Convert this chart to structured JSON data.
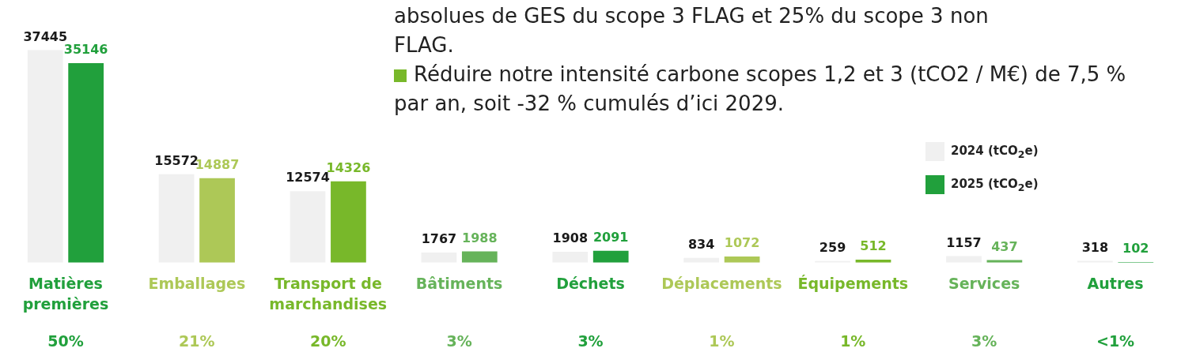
{
  "chart_data": {
    "type": "bar",
    "categories": [
      "Matières premières",
      "Emballages",
      "Transport de marchandises",
      "Bâtiments",
      "Déchets",
      "Déplacements",
      "Équipements",
      "Services",
      "Autres"
    ],
    "series": [
      {
        "name": "2024 (tCO$_{2}$e)",
        "color": "#f0f0f0",
        "values": [
          37445,
          15572,
          12574,
          1767,
          1908,
          834,
          259,
          1157,
          318
        ]
      },
      {
        "name": "2025 (tCO$_{2}$e)",
        "color": "#21a03c",
        "colors": [
          "#21a03c",
          "#adc857",
          "#78b82a",
          "#66b35a",
          "#21a03c",
          "#adc857",
          "#78b82a",
          "#66b35a",
          "#21a03c"
        ],
        "values": [
          35146,
          14887,
          14326,
          1988,
          2091,
          1072,
          512,
          437,
          102
        ]
      }
    ],
    "data_labels": true,
    "legend": "right",
    "grid": false,
    "tick_labels": "x",
    "annotations": [
      "50%",
      "21%",
      "20%",
      "3%",
      "3%",
      "1%",
      "1%",
      "3%",
      "<1%",
      "absolues de GES du scope 3 FLAG et 25% du scope 3 non FLAG.",
      "Réduire notre intensité carbone scopes 1,2 et 3 (tCO2 / M€) de 7,5 % par an, soit -32 % cumulés d’ici 2029."
    ]
  }
}
